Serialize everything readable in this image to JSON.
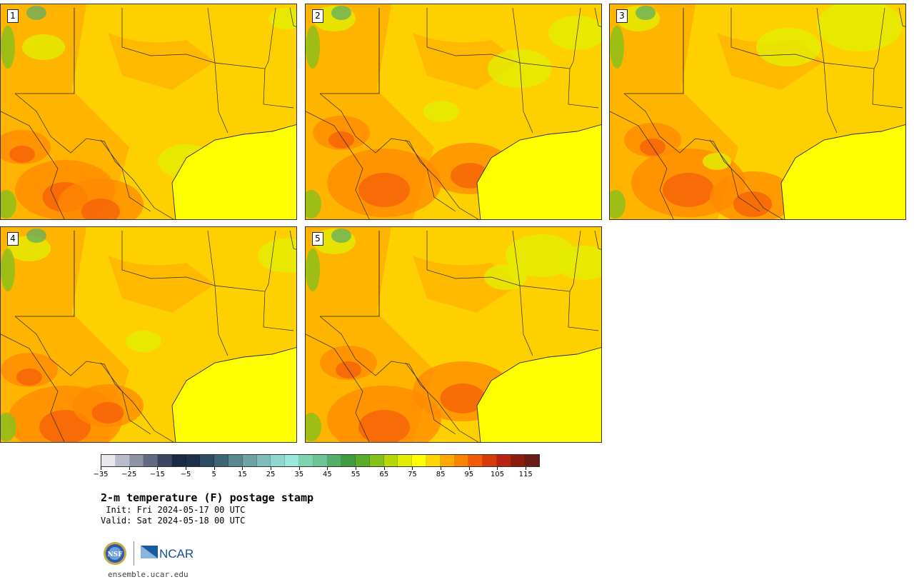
{
  "panels": [
    {
      "number": "1"
    },
    {
      "number": "2"
    },
    {
      "number": "3"
    },
    {
      "number": "4"
    },
    {
      "number": "5"
    }
  ],
  "colorbar": {
    "colors": [
      "#e6e8ee",
      "#b9bccb",
      "#8f93a6",
      "#626a82",
      "#3c4462",
      "#1a2a45",
      "#1d2f4c",
      "#2b4a63",
      "#3e6575",
      "#5a868d",
      "#6fa3a3",
      "#7fbcbb",
      "#8fd6cf",
      "#9ae7d9",
      "#7fd3b0",
      "#6cc496",
      "#55ad6a",
      "#3f9a42",
      "#5aac2a",
      "#86c01b",
      "#b6d606",
      "#e2ee00",
      "#ffff00",
      "#ffd400",
      "#ffa800",
      "#ff8100",
      "#f35b0a",
      "#d93a0b",
      "#b72410",
      "#8c1c10",
      "#6a1d14"
    ],
    "tick_labels": [
      "−35",
      "−25",
      "−15",
      "−5",
      "5",
      "15",
      "25",
      "35",
      "45",
      "55",
      "65",
      "75",
      "85",
      "95",
      "105",
      "115"
    ]
  },
  "title": "2-m temperature (F) postage stamp",
  "init": " Init: Fri 2024-05-17 00 UTC",
  "valid": "Valid: Sat 2024-05-18 00 UTC",
  "logo": {
    "ncar_text": "NCAR",
    "nsf_text": "NSF"
  },
  "url": "ensemble.ucar.edu"
}
